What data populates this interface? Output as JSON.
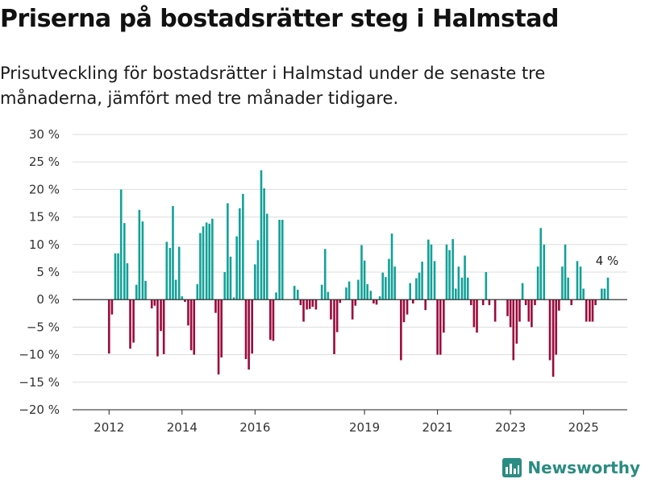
{
  "title": "Priserna på bostadsrätter steg i Halmstad",
  "subtitle": "Prisutveckling för bostadsrätter i Halmstad under de senaste tre månaderna, jämfört med tre månader tidigare.",
  "brand": "Newsworthy",
  "colors": {
    "positive": "#12a198",
    "negative": "#9b0a3c",
    "grid": "#dddddd",
    "axis": "#222222"
  },
  "chart_data": {
    "type": "bar",
    "ylim": [
      -20,
      30
    ],
    "y_ticks": [
      30,
      25,
      20,
      15,
      10,
      5,
      0,
      -5,
      -10,
      -15,
      -20
    ],
    "y_tick_labels": [
      "30 %",
      "25 %",
      "20 %",
      "15 %",
      "10 %",
      "5 %",
      "0 %",
      "−5 %",
      "−10 %",
      "−15 %",
      "−20 %"
    ],
    "x_ticks": [
      2012,
      2014,
      2016,
      2019,
      2021,
      2023,
      2025
    ],
    "x_tick_labels": [
      "2012",
      "2014",
      "2016",
      "2019",
      "2021",
      "2023",
      "2025"
    ],
    "annotation": {
      "text": "4 %",
      "x": 2025.67
    },
    "series": [
      {
        "x": [
          2012.0,
          2012.08,
          2012.17,
          2012.25,
          2012.33,
          2012.42,
          2012.5,
          2012.58,
          2012.67,
          2012.75,
          2012.83,
          2012.92,
          2013.0,
          2013.08,
          2013.17,
          2013.25,
          2013.33,
          2013.42,
          2013.5,
          2013.58,
          2013.67,
          2013.75,
          2013.83,
          2013.92,
          2014.0,
          2014.08,
          2014.17,
          2014.25,
          2014.33,
          2014.42,
          2014.5,
          2014.58,
          2014.67,
          2014.75,
          2014.83,
          2014.92,
          2015.0,
          2015.08,
          2015.17,
          2015.25,
          2015.33,
          2015.42,
          2015.5,
          2015.58,
          2015.67,
          2015.75,
          2015.83,
          2015.92,
          2016.0,
          2016.08,
          2016.17,
          2016.25,
          2016.33,
          2016.42,
          2016.5,
          2016.58,
          2016.67,
          2016.75,
          2017.08,
          2017.17,
          2017.25,
          2017.33,
          2017.42,
          2017.5,
          2017.58,
          2017.67,
          2017.75,
          2017.83,
          2017.92,
          2018.0,
          2018.08,
          2018.17,
          2018.25,
          2018.33,
          2018.42,
          2018.5,
          2018.58,
          2018.67,
          2018.75,
          2018.83,
          2018.92,
          2019.0,
          2019.08,
          2019.17,
          2019.25,
          2019.33,
          2019.42,
          2019.5,
          2019.58,
          2019.67,
          2019.75,
          2019.83,
          2019.92,
          2020.0,
          2020.08,
          2020.17,
          2020.25,
          2020.33,
          2020.42,
          2020.5,
          2020.58,
          2020.67,
          2020.75,
          2020.83,
          2020.92,
          2021.0,
          2021.08,
          2021.17,
          2021.25,
          2021.33,
          2021.42,
          2021.5,
          2021.58,
          2021.67,
          2021.75,
          2021.83,
          2021.92,
          2022.0,
          2022.08,
          2022.17,
          2022.25,
          2022.33,
          2022.42,
          2022.5,
          2022.58,
          2022.67,
          2022.75,
          2022.83,
          2022.92,
          2023.0,
          2023.08,
          2023.17,
          2023.25,
          2023.33,
          2023.42,
          2023.5,
          2023.58,
          2023.67,
          2023.75,
          2023.83,
          2023.92,
          2024.0,
          2024.08,
          2024.17,
          2024.25,
          2024.33,
          2024.42,
          2024.5,
          2024.58,
          2024.67,
          2024.75,
          2024.83,
          2024.92,
          2025.0,
          2025.08,
          2025.17,
          2025.25,
          2025.33,
          2025.42,
          2025.5,
          2025.58,
          2025.67
        ],
        "values": [
          -9.8,
          -2.7,
          8.4,
          8.4,
          20.0,
          13.9,
          6.6,
          -8.9,
          -7.8,
          2.7,
          16.3,
          14.2,
          3.4,
          0.0,
          -1.6,
          -1.1,
          -10.3,
          -5.7,
          -9.9,
          10.5,
          9.4,
          17.0,
          3.6,
          9.6,
          0.6,
          -0.4,
          -4.7,
          -9.2,
          -10.0,
          2.8,
          12.1,
          13.3,
          14.0,
          13.8,
          14.7,
          -2.4,
          -13.6,
          -10.5,
          5.0,
          17.5,
          7.8,
          0.4,
          11.5,
          16.6,
          19.2,
          -10.8,
          -12.7,
          -9.8,
          6.4,
          10.8,
          23.5,
          20.2,
          15.6,
          -7.3,
          -7.5,
          1.3,
          14.5,
          14.5,
          2.5,
          1.8,
          -1.0,
          -4.0,
          -1.8,
          -1.7,
          -1.3,
          -1.8,
          0.0,
          2.7,
          9.2,
          1.4,
          -3.6,
          -9.9,
          -5.9,
          -0.6,
          0.0,
          2.2,
          3.3,
          -3.6,
          -1.1,
          3.6,
          9.9,
          7.1,
          2.8,
          1.6,
          -0.7,
          -0.9,
          0.6,
          4.9,
          4.1,
          7.4,
          12.0,
          6.0,
          0.0,
          -11.0,
          -4.1,
          -2.7,
          3.0,
          -0.7,
          3.9,
          4.9,
          6.9,
          -1.9,
          10.9,
          10.0,
          7.0,
          -10.0,
          -10.0,
          -6.0,
          10.0,
          9.0,
          11.0,
          2.0,
          6.0,
          4.0,
          8.0,
          4.0,
          -1.0,
          -5.0,
          -6.0,
          0.0,
          -1.0,
          5.0,
          -1.0,
          0.0,
          -4.0,
          0.0,
          0.0,
          0.0,
          -3.0,
          -5.0,
          -11.0,
          -8.0,
          -4.0,
          3.0,
          -1.0,
          -4.0,
          -5.0,
          -1.0,
          6.0,
          13.0,
          10.0,
          0.0,
          -11.0,
          -14.0,
          -10.0,
          -2.0,
          6.0,
          10.0,
          4.0,
          -1.0,
          0.0,
          7.0,
          6.0,
          2.0,
          -4.0,
          -4.0,
          -4.0,
          -1.0,
          0.0,
          2.0,
          2.0,
          4.0
        ]
      }
    ]
  }
}
